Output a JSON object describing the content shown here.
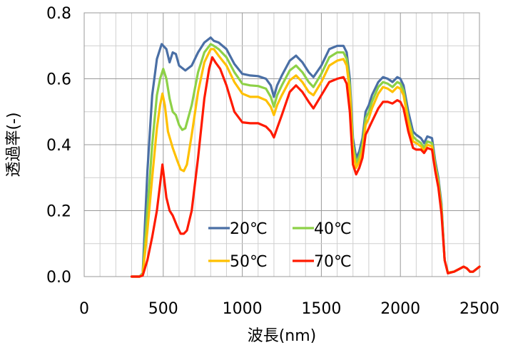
{
  "chart_data": {
    "type": "line",
    "xlabel": "波長(nm)",
    "ylabel": "透過率(-)",
    "xlim": [
      0,
      2500
    ],
    "ylim": [
      0,
      0.8
    ],
    "xticks": [
      "0",
      "500",
      "1000",
      "1500",
      "2000",
      "2500"
    ],
    "yticks": [
      "0.0",
      "0.2",
      "0.4",
      "0.6",
      "0.8"
    ],
    "grid": true,
    "legend_position": "lower-center-inside",
    "series": [
      {
        "name": "20℃",
        "color": "#4a6fa5",
        "points": [
          [
            300,
            0
          ],
          [
            350,
            0
          ],
          [
            370,
            0.01
          ],
          [
            400,
            0.32
          ],
          [
            430,
            0.55
          ],
          [
            460,
            0.66
          ],
          [
            490,
            0.705
          ],
          [
            520,
            0.69
          ],
          [
            540,
            0.65
          ],
          [
            560,
            0.68
          ],
          [
            580,
            0.675
          ],
          [
            600,
            0.64
          ],
          [
            640,
            0.625
          ],
          [
            680,
            0.64
          ],
          [
            720,
            0.68
          ],
          [
            760,
            0.71
          ],
          [
            800,
            0.725
          ],
          [
            820,
            0.715
          ],
          [
            850,
            0.71
          ],
          [
            900,
            0.69
          ],
          [
            950,
            0.645
          ],
          [
            1000,
            0.615
          ],
          [
            1050,
            0.61
          ],
          [
            1100,
            0.608
          ],
          [
            1150,
            0.6
          ],
          [
            1180,
            0.58
          ],
          [
            1200,
            0.545
          ],
          [
            1220,
            0.58
          ],
          [
            1250,
            0.61
          ],
          [
            1300,
            0.655
          ],
          [
            1340,
            0.67
          ],
          [
            1380,
            0.65
          ],
          [
            1420,
            0.62
          ],
          [
            1450,
            0.605
          ],
          [
            1500,
            0.64
          ],
          [
            1550,
            0.69
          ],
          [
            1600,
            0.7
          ],
          [
            1640,
            0.7
          ],
          [
            1660,
            0.68
          ],
          [
            1680,
            0.6
          ],
          [
            1700,
            0.42
          ],
          [
            1720,
            0.36
          ],
          [
            1740,
            0.38
          ],
          [
            1760,
            0.42
          ],
          [
            1780,
            0.5
          ],
          [
            1800,
            0.52
          ],
          [
            1820,
            0.55
          ],
          [
            1860,
            0.59
          ],
          [
            1890,
            0.605
          ],
          [
            1920,
            0.6
          ],
          [
            1950,
            0.59
          ],
          [
            1980,
            0.605
          ],
          [
            2000,
            0.6
          ],
          [
            2020,
            0.58
          ],
          [
            2050,
            0.5
          ],
          [
            2080,
            0.44
          ],
          [
            2100,
            0.43
          ],
          [
            2130,
            0.42
          ],
          [
            2150,
            0.405
          ],
          [
            2170,
            0.425
          ],
          [
            2200,
            0.42
          ],
          [
            2220,
            0.35
          ],
          [
            2240,
            0.3
          ],
          [
            2260,
            0.22
          ],
          [
            2280,
            0.05
          ],
          [
            2300,
            0.012
          ],
          [
            2340,
            0.015
          ],
          [
            2380,
            0.025
          ],
          [
            2400,
            0.03
          ],
          [
            2420,
            0.025
          ],
          [
            2440,
            0.015
          ],
          [
            2460,
            0.015
          ],
          [
            2500,
            0.03
          ]
        ]
      },
      {
        "name": "40℃",
        "color": "#8dd147",
        "points": [
          [
            300,
            0
          ],
          [
            350,
            0
          ],
          [
            370,
            0.008
          ],
          [
            400,
            0.2
          ],
          [
            430,
            0.4
          ],
          [
            460,
            0.55
          ],
          [
            480,
            0.6
          ],
          [
            500,
            0.63
          ],
          [
            520,
            0.6
          ],
          [
            540,
            0.54
          ],
          [
            560,
            0.5
          ],
          [
            580,
            0.49
          ],
          [
            600,
            0.46
          ],
          [
            620,
            0.445
          ],
          [
            640,
            0.45
          ],
          [
            680,
            0.52
          ],
          [
            720,
            0.62
          ],
          [
            760,
            0.68
          ],
          [
            800,
            0.705
          ],
          [
            820,
            0.7
          ],
          [
            850,
            0.69
          ],
          [
            900,
            0.665
          ],
          [
            950,
            0.62
          ],
          [
            1000,
            0.585
          ],
          [
            1050,
            0.58
          ],
          [
            1100,
            0.578
          ],
          [
            1150,
            0.57
          ],
          [
            1180,
            0.545
          ],
          [
            1200,
            0.515
          ],
          [
            1220,
            0.55
          ],
          [
            1250,
            0.58
          ],
          [
            1300,
            0.625
          ],
          [
            1340,
            0.64
          ],
          [
            1380,
            0.62
          ],
          [
            1420,
            0.59
          ],
          [
            1450,
            0.575
          ],
          [
            1500,
            0.615
          ],
          [
            1550,
            0.665
          ],
          [
            1600,
            0.68
          ],
          [
            1640,
            0.68
          ],
          [
            1660,
            0.66
          ],
          [
            1680,
            0.58
          ],
          [
            1700,
            0.4
          ],
          [
            1720,
            0.345
          ],
          [
            1740,
            0.365
          ],
          [
            1760,
            0.4
          ],
          [
            1780,
            0.48
          ],
          [
            1800,
            0.5
          ],
          [
            1820,
            0.53
          ],
          [
            1860,
            0.575
          ],
          [
            1890,
            0.59
          ],
          [
            1920,
            0.585
          ],
          [
            1950,
            0.575
          ],
          [
            1980,
            0.59
          ],
          [
            2000,
            0.585
          ],
          [
            2020,
            0.565
          ],
          [
            2050,
            0.48
          ],
          [
            2080,
            0.425
          ],
          [
            2100,
            0.415
          ],
          [
            2130,
            0.405
          ],
          [
            2150,
            0.39
          ],
          [
            2170,
            0.41
          ],
          [
            2200,
            0.405
          ],
          [
            2220,
            0.34
          ],
          [
            2240,
            0.29
          ],
          [
            2260,
            0.21
          ],
          [
            2280,
            0.05
          ],
          [
            2300,
            0.012
          ],
          [
            2340,
            0.015
          ],
          [
            2380,
            0.025
          ],
          [
            2400,
            0.03
          ],
          [
            2420,
            0.025
          ],
          [
            2440,
            0.015
          ],
          [
            2460,
            0.015
          ],
          [
            2500,
            0.03
          ]
        ]
      },
      {
        "name": "50℃",
        "color": "#ffc000",
        "points": [
          [
            300,
            0
          ],
          [
            350,
            0
          ],
          [
            370,
            0.006
          ],
          [
            400,
            0.14
          ],
          [
            430,
            0.3
          ],
          [
            460,
            0.45
          ],
          [
            480,
            0.52
          ],
          [
            495,
            0.555
          ],
          [
            510,
            0.52
          ],
          [
            530,
            0.44
          ],
          [
            560,
            0.39
          ],
          [
            590,
            0.35
          ],
          [
            610,
            0.325
          ],
          [
            630,
            0.32
          ],
          [
            650,
            0.34
          ],
          [
            680,
            0.43
          ],
          [
            720,
            0.56
          ],
          [
            760,
            0.65
          ],
          [
            800,
            0.69
          ],
          [
            820,
            0.69
          ],
          [
            850,
            0.67
          ],
          [
            900,
            0.64
          ],
          [
            950,
            0.59
          ],
          [
            1000,
            0.555
          ],
          [
            1050,
            0.545
          ],
          [
            1100,
            0.545
          ],
          [
            1150,
            0.535
          ],
          [
            1180,
            0.515
          ],
          [
            1200,
            0.49
          ],
          [
            1220,
            0.52
          ],
          [
            1250,
            0.55
          ],
          [
            1300,
            0.595
          ],
          [
            1340,
            0.61
          ],
          [
            1380,
            0.59
          ],
          [
            1420,
            0.56
          ],
          [
            1450,
            0.55
          ],
          [
            1500,
            0.59
          ],
          [
            1550,
            0.64
          ],
          [
            1600,
            0.655
          ],
          [
            1640,
            0.66
          ],
          [
            1660,
            0.64
          ],
          [
            1680,
            0.56
          ],
          [
            1700,
            0.38
          ],
          [
            1720,
            0.33
          ],
          [
            1740,
            0.35
          ],
          [
            1760,
            0.38
          ],
          [
            1780,
            0.46
          ],
          [
            1800,
            0.48
          ],
          [
            1820,
            0.51
          ],
          [
            1860,
            0.555
          ],
          [
            1890,
            0.575
          ],
          [
            1920,
            0.57
          ],
          [
            1950,
            0.56
          ],
          [
            1980,
            0.575
          ],
          [
            2000,
            0.57
          ],
          [
            2020,
            0.55
          ],
          [
            2050,
            0.47
          ],
          [
            2080,
            0.41
          ],
          [
            2100,
            0.405
          ],
          [
            2130,
            0.395
          ],
          [
            2150,
            0.38
          ],
          [
            2170,
            0.4
          ],
          [
            2200,
            0.395
          ],
          [
            2220,
            0.33
          ],
          [
            2240,
            0.28
          ],
          [
            2260,
            0.2
          ],
          [
            2280,
            0.05
          ],
          [
            2300,
            0.012
          ],
          [
            2340,
            0.015
          ],
          [
            2380,
            0.025
          ],
          [
            2400,
            0.03
          ],
          [
            2420,
            0.025
          ],
          [
            2440,
            0.015
          ],
          [
            2460,
            0.015
          ],
          [
            2500,
            0.03
          ]
        ]
      },
      {
        "name": "70℃",
        "color": "#ff1a00",
        "points": [
          [
            300,
            0
          ],
          [
            350,
            0
          ],
          [
            370,
            0.003
          ],
          [
            400,
            0.05
          ],
          [
            430,
            0.12
          ],
          [
            460,
            0.2
          ],
          [
            485,
            0.3
          ],
          [
            495,
            0.34
          ],
          [
            505,
            0.3
          ],
          [
            520,
            0.24
          ],
          [
            540,
            0.2
          ],
          [
            560,
            0.185
          ],
          [
            590,
            0.15
          ],
          [
            610,
            0.13
          ],
          [
            630,
            0.13
          ],
          [
            650,
            0.14
          ],
          [
            680,
            0.2
          ],
          [
            720,
            0.36
          ],
          [
            760,
            0.54
          ],
          [
            790,
            0.63
          ],
          [
            810,
            0.665
          ],
          [
            830,
            0.65
          ],
          [
            860,
            0.63
          ],
          [
            900,
            0.58
          ],
          [
            950,
            0.5
          ],
          [
            1000,
            0.468
          ],
          [
            1050,
            0.465
          ],
          [
            1100,
            0.465
          ],
          [
            1150,
            0.455
          ],
          [
            1180,
            0.44
          ],
          [
            1200,
            0.422
          ],
          [
            1220,
            0.45
          ],
          [
            1250,
            0.49
          ],
          [
            1300,
            0.56
          ],
          [
            1340,
            0.58
          ],
          [
            1380,
            0.56
          ],
          [
            1420,
            0.53
          ],
          [
            1450,
            0.51
          ],
          [
            1500,
            0.55
          ],
          [
            1550,
            0.59
          ],
          [
            1600,
            0.6
          ],
          [
            1640,
            0.605
          ],
          [
            1660,
            0.585
          ],
          [
            1680,
            0.5
          ],
          [
            1700,
            0.34
          ],
          [
            1720,
            0.31
          ],
          [
            1740,
            0.33
          ],
          [
            1760,
            0.36
          ],
          [
            1780,
            0.43
          ],
          [
            1800,
            0.45
          ],
          [
            1820,
            0.47
          ],
          [
            1860,
            0.51
          ],
          [
            1890,
            0.53
          ],
          [
            1920,
            0.53
          ],
          [
            1950,
            0.525
          ],
          [
            1980,
            0.535
          ],
          [
            2000,
            0.53
          ],
          [
            2020,
            0.51
          ],
          [
            2050,
            0.44
          ],
          [
            2080,
            0.39
          ],
          [
            2100,
            0.385
          ],
          [
            2130,
            0.385
          ],
          [
            2150,
            0.375
          ],
          [
            2170,
            0.39
          ],
          [
            2200,
            0.385
          ],
          [
            2220,
            0.32
          ],
          [
            2240,
            0.27
          ],
          [
            2260,
            0.19
          ],
          [
            2280,
            0.05
          ],
          [
            2300,
            0.01
          ],
          [
            2340,
            0.015
          ],
          [
            2380,
            0.025
          ],
          [
            2400,
            0.03
          ],
          [
            2420,
            0.025
          ],
          [
            2440,
            0.015
          ],
          [
            2460,
            0.015
          ],
          [
            2500,
            0.03
          ]
        ]
      }
    ]
  }
}
